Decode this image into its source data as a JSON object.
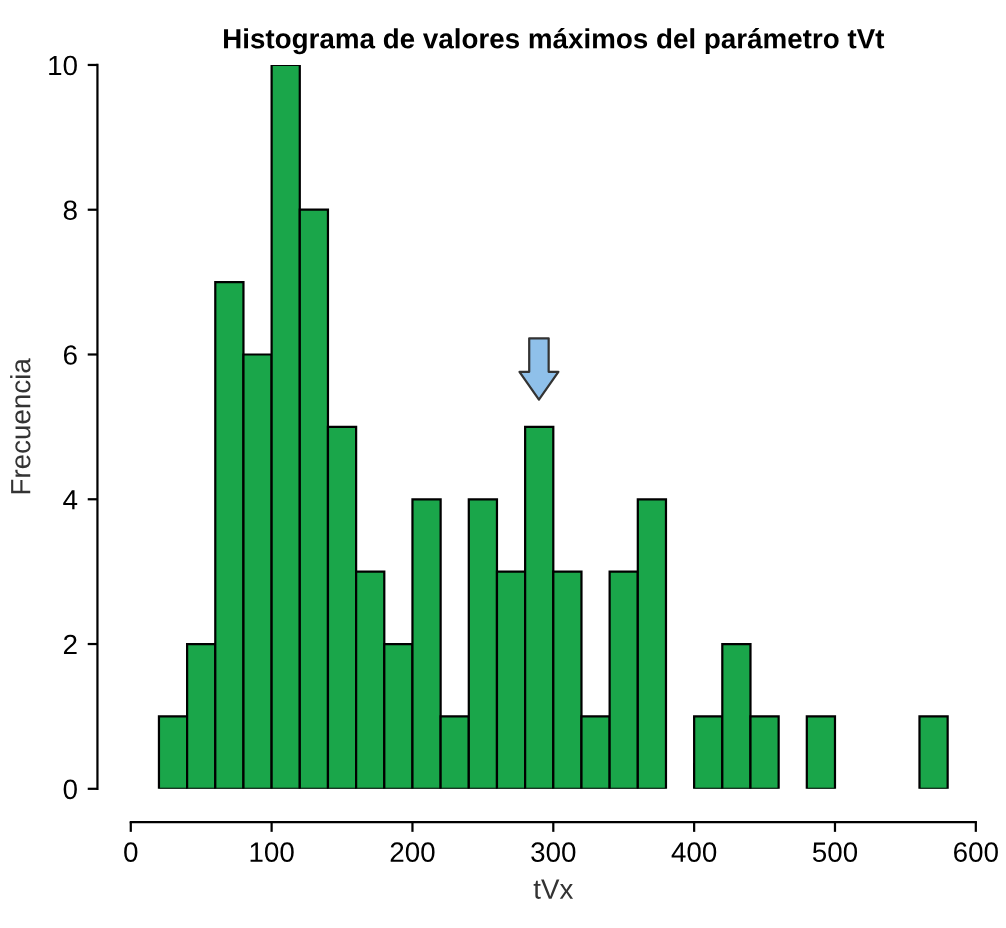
{
  "chart_data": {
    "type": "histogram",
    "title": "Histograma de valores máximos del parámetro tVt",
    "xlabel": "tVx",
    "ylabel": "Frecuencia",
    "bins": [
      20,
      40,
      60,
      80,
      100,
      120,
      140,
      160,
      180,
      200,
      220,
      240,
      260,
      280,
      300,
      320,
      340,
      360,
      380,
      400,
      420,
      440,
      460,
      480,
      500,
      520,
      540,
      560,
      580
    ],
    "values": [
      1,
      2,
      7,
      6,
      10,
      8,
      5,
      3,
      2,
      4,
      1,
      4,
      3,
      5,
      3,
      1,
      3,
      4,
      0,
      1,
      2,
      1,
      0,
      1,
      0,
      0,
      0,
      1
    ],
    "color": "#1aa64a",
    "xlim": [
      0,
      600
    ],
    "xticks": [
      0,
      100,
      200,
      300,
      400,
      500,
      600
    ],
    "ylim": [
      0,
      10
    ],
    "yticks": [
      0,
      2,
      4,
      6,
      8,
      10
    ],
    "grid": false
  }
}
